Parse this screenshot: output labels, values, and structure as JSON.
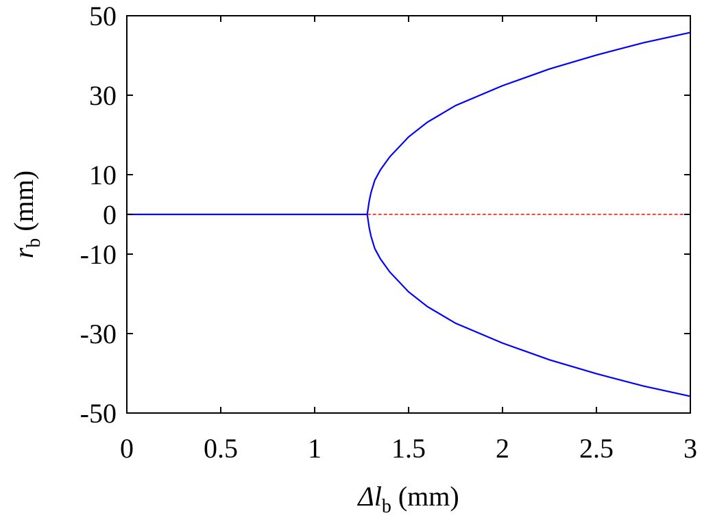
{
  "chart_data": {
    "type": "line",
    "xlabel": {
      "symbol": "Δl",
      "subscript": "b",
      "unit": " (mm)"
    },
    "ylabel": {
      "symbol": "r",
      "subscript": "b",
      "unit": " (mm)"
    },
    "xlim": [
      0,
      3
    ],
    "ylim": [
      -50,
      50
    ],
    "x_ticks": [
      0,
      0.5,
      1,
      1.5,
      2,
      2.5,
      3
    ],
    "x_tick_labels": [
      "0",
      "0.5",
      "1",
      "1.5",
      "2",
      "2.5",
      "3"
    ],
    "y_ticks": [
      50,
      30,
      10,
      0,
      -10,
      -30,
      -50
    ],
    "y_tick_labels": [
      "50",
      "30",
      "10",
      "0",
      "-10",
      "-30",
      "-50"
    ],
    "grid": false,
    "series": [
      {
        "style": "solid",
        "color": "#0000ff",
        "points": [
          [
            0,
            0
          ],
          [
            1.28,
            0
          ]
        ]
      },
      {
        "style": "solid",
        "color": "#0000ff",
        "points": [
          [
            1.28,
            0
          ],
          [
            1.29,
            3.3
          ],
          [
            1.3,
            5.5
          ],
          [
            1.32,
            8.6
          ],
          [
            1.35,
            11.2
          ],
          [
            1.4,
            14.5
          ],
          [
            1.5,
            19.5
          ],
          [
            1.6,
            23.2
          ],
          [
            1.75,
            27.4
          ],
          [
            2.0,
            32.4
          ],
          [
            2.25,
            36.6
          ],
          [
            2.5,
            40.1
          ],
          [
            2.75,
            43.2
          ],
          [
            3.0,
            45.8
          ]
        ]
      },
      {
        "style": "solid",
        "color": "#0000ff",
        "points": [
          [
            1.28,
            0
          ],
          [
            1.29,
            -3.3
          ],
          [
            1.3,
            -5.5
          ],
          [
            1.32,
            -8.6
          ],
          [
            1.35,
            -11.2
          ],
          [
            1.4,
            -14.5
          ],
          [
            1.5,
            -19.5
          ],
          [
            1.6,
            -23.2
          ],
          [
            1.75,
            -27.4
          ],
          [
            2.0,
            -32.4
          ],
          [
            2.25,
            -36.6
          ],
          [
            2.5,
            -40.1
          ],
          [
            2.75,
            -43.2
          ],
          [
            3.0,
            -45.8
          ]
        ]
      },
      {
        "style": "dashed",
        "color": "#ff0000",
        "points": [
          [
            1.28,
            0
          ],
          [
            3.0,
            0
          ]
        ]
      }
    ]
  }
}
